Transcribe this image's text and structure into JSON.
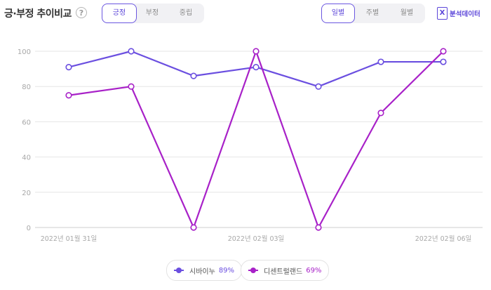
{
  "header": {
    "title": "긍·부정 추이비교",
    "help_icon": "?",
    "sentiment_tabs": [
      "긍정",
      "부정",
      "중립"
    ],
    "period_tabs": [
      "일별",
      "주별",
      "월별"
    ],
    "export_label": "분석데이터",
    "export_icon": "X"
  },
  "chart_data": {
    "type": "line",
    "x_tick_labels": [
      "2022년 01월 31일",
      "2022년 02월 03일",
      "2022년 02월 06일"
    ],
    "ylim": [
      0,
      100
    ],
    "y_ticks": [
      0,
      20,
      40,
      60,
      80,
      100
    ],
    "grid": true,
    "series": [
      {
        "name": "시바이누",
        "summary": "89%",
        "color": "#6b4fe0",
        "values": [
          91,
          100,
          86,
          91,
          80,
          94,
          94
        ]
      },
      {
        "name": "디센트럴랜드",
        "summary": "69%",
        "color": "#a821c8",
        "values": [
          75,
          80,
          0,
          100,
          0,
          65,
          100
        ]
      }
    ]
  }
}
